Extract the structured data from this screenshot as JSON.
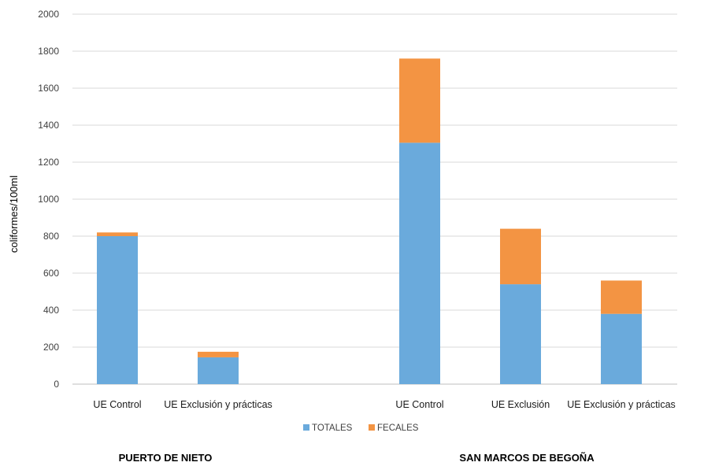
{
  "chart_data": {
    "type": "bar",
    "stacked": true,
    "ylabel": "coliformes/100ml",
    "ylim": [
      0,
      2000
    ],
    "yticks": [
      0,
      200,
      400,
      600,
      800,
      1000,
      1200,
      1400,
      1600,
      1800,
      2000
    ],
    "grid": true,
    "legend_position": "bottom",
    "categories": [
      "UE Control",
      "UE Exclusión y prácticas",
      "",
      "UE Control",
      "UE Exclusión",
      "UE Exclusión y prácticas"
    ],
    "groups": [
      {
        "name": "PUERTO DE NIETO",
        "categories": [
          0,
          1
        ]
      },
      {
        "name": "SAN MARCOS DE BEGOÑA",
        "categories": [
          3,
          4,
          5
        ]
      }
    ],
    "series": [
      {
        "name": "TOTALES",
        "color": "#6aaadc",
        "values": [
          800,
          145,
          null,
          1305,
          540,
          380
        ]
      },
      {
        "name": "FECALES",
        "color": "#f39443",
        "values": [
          20,
          30,
          null,
          455,
          300,
          180
        ]
      }
    ]
  }
}
